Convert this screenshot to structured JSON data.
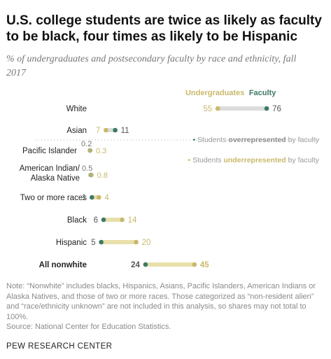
{
  "title": "U.S. college students are twice as likely as faculty to be black, four times as likely to be Hispanic",
  "subtitle": "% of undergraduates and postsecondary faculty by race and ethnicity, fall 2017",
  "colors": {
    "undergraduates": "#c9b86b",
    "faculty": "#3d7a68",
    "connector": "#dcdcdc",
    "highlight": "#e9dfaa"
  },
  "chart_data": {
    "type": "dot",
    "legend_position": "top-right",
    "series": [
      {
        "name": "Undergraduates"
      },
      {
        "name": "Faculty"
      }
    ],
    "categories": [
      "White",
      "Asian",
      "Pacific Islander",
      "American Indian/ Alaska Native",
      "Two or more races",
      "Black",
      "Hispanic",
      "All nonwhite"
    ],
    "rows": [
      {
        "label": "White",
        "undergraduates": 55,
        "faculty": 76,
        "bold": false
      },
      {
        "label": "Asian",
        "undergraduates": 7,
        "faculty": 11,
        "bold": false
      },
      {
        "label": "Pacific Islander",
        "undergraduates": 0.3,
        "faculty": 0.2,
        "bold": false
      },
      {
        "label": "American Indian/ Alaska Native",
        "undergraduates": 0.8,
        "faculty": 0.5,
        "bold": false
      },
      {
        "label": "Two or more races",
        "undergraduates": 4,
        "faculty": 1,
        "bold": false
      },
      {
        "label": "Black",
        "undergraduates": 14,
        "faculty": 6,
        "bold": false
      },
      {
        "label": "Hispanic",
        "undergraduates": 20,
        "faculty": 5,
        "bold": false
      },
      {
        "label": "All nonwhite",
        "undergraduates": 45,
        "faculty": 24,
        "bold": true
      }
    ],
    "annotations": [
      {
        "group": "overrepresented",
        "prefix": "Students ",
        "emph": "overrepresented",
        "suffix": " by faculty"
      },
      {
        "group": "underrepresented",
        "prefix": "Students ",
        "emph": "underrepresented",
        "suffix": " by faculty"
      }
    ]
  },
  "notes": [
    "Note: “Nonwhite” includes blacks, Hispanics, Asians, Pacific Islanders, American Indians or Alaska Natives, and those of two or more races. Those categorized as “non-resident alien” and “race/ethnicity unknown” are not included in this analysis, so shares may not total to 100%.",
    "Source: National Center for Education Statistics."
  ],
  "footer": "PEW RESEARCH CENTER"
}
